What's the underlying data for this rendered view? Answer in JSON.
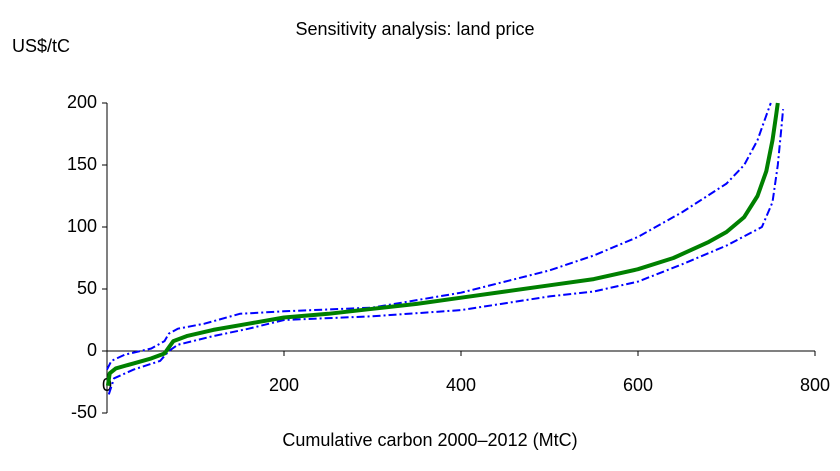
{
  "chart_data": {
    "type": "line",
    "title": "Sensitivity analysis: land price",
    "y_label": "US$/tC",
    "x_label": "Cumulative carbon 2000–2012 (MtC)",
    "xlim": [
      0,
      800
    ],
    "xticks": [
      0,
      200,
      400,
      600,
      800
    ],
    "ylim": [
      -50,
      200
    ],
    "yticks": [
      -50,
      0,
      50,
      100,
      150,
      200
    ],
    "series": [
      {
        "color": "#0000ff",
        "style": "dashdot",
        "x": [
          0,
          5,
          20,
          50,
          65,
          70,
          80,
          110,
          150,
          200,
          300,
          400,
          500,
          550,
          600,
          650,
          700,
          720,
          735,
          745,
          750
        ],
        "values": [
          -15,
          -8,
          -3,
          2,
          8,
          14,
          18,
          22,
          30,
          32,
          35,
          47,
          65,
          77,
          92,
          112,
          135,
          150,
          170,
          190,
          200
        ]
      },
      {
        "color": "#0000ff",
        "style": "dashdot",
        "x": [
          2,
          8,
          30,
          60,
          70,
          80,
          120,
          160,
          200,
          300,
          400,
          500,
          550,
          600,
          650,
          700,
          740,
          752,
          758,
          762,
          764
        ],
        "values": [
          -35,
          -22,
          -15,
          -8,
          0,
          5,
          12,
          18,
          25,
          28,
          33,
          44,
          48,
          56,
          70,
          85,
          100,
          120,
          150,
          180,
          195
        ]
      },
      {
        "color": "#008000",
        "style": "solid",
        "x": [
          1,
          3,
          10,
          30,
          50,
          65,
          70,
          75,
          90,
          120,
          160,
          200,
          250,
          300,
          350,
          400,
          450,
          500,
          550,
          600,
          640,
          680,
          700,
          720,
          735,
          745,
          752,
          756,
          758
        ],
        "values": [
          -28,
          -18,
          -14,
          -10,
          -6,
          -2,
          3,
          8,
          12,
          17,
          22,
          27,
          30,
          34,
          38,
          43,
          48,
          53,
          58,
          66,
          75,
          88,
          96,
          108,
          125,
          145,
          170,
          190,
          200
        ]
      }
    ]
  }
}
